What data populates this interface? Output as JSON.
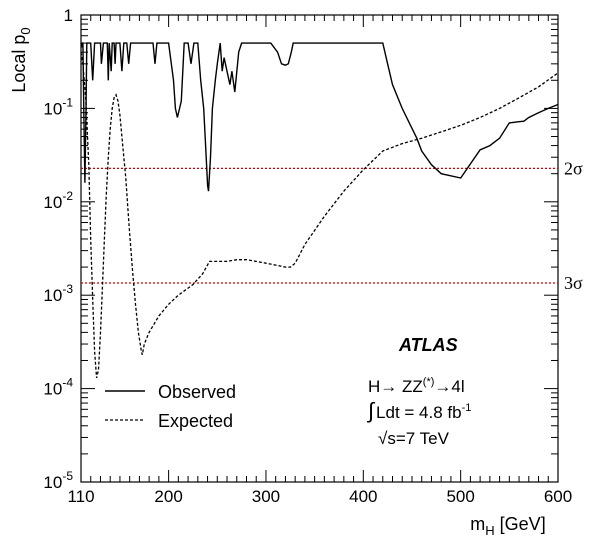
{
  "chart_data": {
    "type": "line",
    "xlabel": "m",
    "xlabel_sub": "H",
    "xlabel_unit": " [GeV]",
    "ylabel": "Local p",
    "ylabel_sub": "0",
    "yscale": "log",
    "xlim": [
      110,
      600
    ],
    "ylim": [
      1e-05,
      1
    ],
    "x_ticks": [
      110,
      200,
      300,
      400,
      500,
      600
    ],
    "x_tick_labels": [
      "110",
      "200",
      "300",
      "400",
      "500",
      "600"
    ],
    "y_ticks": [
      1e-05,
      0.0001,
      0.001,
      0.01,
      0.1,
      1
    ],
    "y_tick_labels": [
      {
        "base": "10",
        "exp": "-5"
      },
      {
        "base": "10",
        "exp": "-4"
      },
      {
        "base": "10",
        "exp": "-3"
      },
      {
        "base": "10",
        "exp": "-2"
      },
      {
        "base": "10",
        "exp": "-1"
      },
      {
        "base": "1",
        "exp": ""
      }
    ],
    "reference_lines": [
      {
        "label": "2σ",
        "value": 0.0228,
        "color": "#cc0000"
      },
      {
        "label": "3σ",
        "value": 0.00135,
        "color": "#cc0000"
      }
    ],
    "series": [
      {
        "name": "Observed",
        "style": "solid",
        "color": "#000000",
        "points": [
          [
            110,
            0.5
          ],
          [
            110.5,
            0.45
          ],
          [
            111,
            0.5
          ],
          [
            112,
            0.5
          ],
          [
            113,
            0.08
          ],
          [
            114,
            0.016
          ],
          [
            115,
            0.08
          ],
          [
            116,
            0.5
          ],
          [
            120,
            0.5
          ],
          [
            122,
            0.2
          ],
          [
            124,
            0.5
          ],
          [
            130,
            0.5
          ],
          [
            131,
            0.3
          ],
          [
            133,
            0.5
          ],
          [
            137,
            0.5
          ],
          [
            138,
            0.2
          ],
          [
            139,
            0.5
          ],
          [
            141,
            0.25
          ],
          [
            142,
            0.5
          ],
          [
            144,
            0.5
          ],
          [
            145,
            0.3
          ],
          [
            146,
            0.5
          ],
          [
            150,
            0.5
          ],
          [
            152,
            0.25
          ],
          [
            154,
            0.5
          ],
          [
            157,
            0.5
          ],
          [
            159,
            0.3
          ],
          [
            161,
            0.5
          ],
          [
            180,
            0.5
          ],
          [
            184,
            0.5
          ],
          [
            186,
            0.3
          ],
          [
            188,
            0.5
          ],
          [
            195,
            0.5
          ],
          [
            200,
            0.5
          ],
          [
            205,
            0.2
          ],
          [
            207,
            0.1
          ],
          [
            209,
            0.08
          ],
          [
            213,
            0.12
          ],
          [
            216,
            0.5
          ],
          [
            220,
            0.5
          ],
          [
            223,
            0.3
          ],
          [
            226,
            0.5
          ],
          [
            230,
            0.5
          ],
          [
            233,
            0.2
          ],
          [
            236,
            0.1
          ],
          [
            238,
            0.04
          ],
          [
            240,
            0.015
          ],
          [
            241,
            0.013
          ],
          [
            243,
            0.03
          ],
          [
            245,
            0.1
          ],
          [
            248,
            0.2
          ],
          [
            250,
            0.3
          ],
          [
            253,
            0.5
          ],
          [
            255,
            0.25
          ],
          [
            257,
            0.35
          ],
          [
            260,
            0.25
          ],
          [
            263,
            0.18
          ],
          [
            265,
            0.25
          ],
          [
            268,
            0.15
          ],
          [
            272,
            0.4
          ],
          [
            275,
            0.5
          ],
          [
            305,
            0.5
          ],
          [
            312,
            0.4
          ],
          [
            316,
            0.3
          ],
          [
            320,
            0.29
          ],
          [
            323,
            0.3
          ],
          [
            326,
            0.4
          ],
          [
            328,
            0.5
          ],
          [
            410,
            0.5
          ],
          [
            420,
            0.5
          ],
          [
            425,
            0.3
          ],
          [
            430,
            0.18
          ],
          [
            440,
            0.1
          ],
          [
            455,
            0.048
          ],
          [
            460,
            0.035
          ],
          [
            470,
            0.025
          ],
          [
            480,
            0.02
          ],
          [
            500,
            0.018
          ],
          [
            520,
            0.036
          ],
          [
            530,
            0.04
          ],
          [
            540,
            0.048
          ],
          [
            550,
            0.07
          ],
          [
            560,
            0.072
          ],
          [
            565,
            0.073
          ],
          [
            570,
            0.08
          ],
          [
            580,
            0.09
          ],
          [
            590,
            0.1
          ],
          [
            600,
            0.11
          ]
        ]
      },
      {
        "name": "Expected",
        "style": "dashed",
        "color": "#000000",
        "points": [
          [
            110,
            0.4
          ],
          [
            112,
            0.3
          ],
          [
            115,
            0.12
          ],
          [
            118,
            0.025
          ],
          [
            120,
            0.004
          ],
          [
            122,
            0.0009
          ],
          [
            124,
            0.00025
          ],
          [
            126,
            0.00013
          ],
          [
            128,
            0.00016
          ],
          [
            130,
            0.0004
          ],
          [
            132,
            0.0012
          ],
          [
            134,
            0.004
          ],
          [
            136,
            0.012
          ],
          [
            138,
            0.03
          ],
          [
            140,
            0.06
          ],
          [
            142,
            0.1
          ],
          [
            144,
            0.13
          ],
          [
            146,
            0.14
          ],
          [
            148,
            0.12
          ],
          [
            150,
            0.085
          ],
          [
            152,
            0.05
          ],
          [
            154,
            0.03
          ],
          [
            156,
            0.018
          ],
          [
            158,
            0.009
          ],
          [
            160,
            0.0045
          ],
          [
            163,
            0.0018
          ],
          [
            166,
            0.0008
          ],
          [
            169,
            0.0004
          ],
          [
            172,
            0.00025
          ],
          [
            173,
            0.00023
          ],
          [
            175,
            0.0003
          ],
          [
            180,
            0.0004
          ],
          [
            190,
            0.0006
          ],
          [
            200,
            0.0008
          ],
          [
            210,
            0.001
          ],
          [
            225,
            0.0013
          ],
          [
            235,
            0.0017
          ],
          [
            242,
            0.0023
          ],
          [
            250,
            0.0023
          ],
          [
            260,
            0.0023
          ],
          [
            270,
            0.0024
          ],
          [
            280,
            0.0024
          ],
          [
            290,
            0.0023
          ],
          [
            300,
            0.0022
          ],
          [
            310,
            0.0021
          ],
          [
            320,
            0.002
          ],
          [
            325,
            0.002
          ],
          [
            330,
            0.0022
          ],
          [
            340,
            0.0035
          ],
          [
            360,
            0.007
          ],
          [
            380,
            0.013
          ],
          [
            400,
            0.022
          ],
          [
            420,
            0.035
          ],
          [
            440,
            0.042
          ],
          [
            460,
            0.048
          ],
          [
            480,
            0.056
          ],
          [
            500,
            0.066
          ],
          [
            520,
            0.08
          ],
          [
            540,
            0.1
          ],
          [
            560,
            0.13
          ],
          [
            580,
            0.17
          ],
          [
            600,
            0.24
          ]
        ]
      }
    ],
    "legend": [
      {
        "label": "Observed",
        "style": "solid"
      },
      {
        "label": "Expected",
        "style": "dashed"
      }
    ],
    "annotations": {
      "experiment": "ATLAS",
      "process_prefix": "H",
      "process_arrow": "→",
      "process_zz": " ZZ",
      "process_star": "(*)",
      "process_suffix": "4l",
      "integral_sign": "∫",
      "lumi_text": "Ldt = 4.8 fb",
      "lumi_exp": "-1",
      "sqrt_sign": "√",
      "energy_text": "s=7 TeV"
    }
  }
}
